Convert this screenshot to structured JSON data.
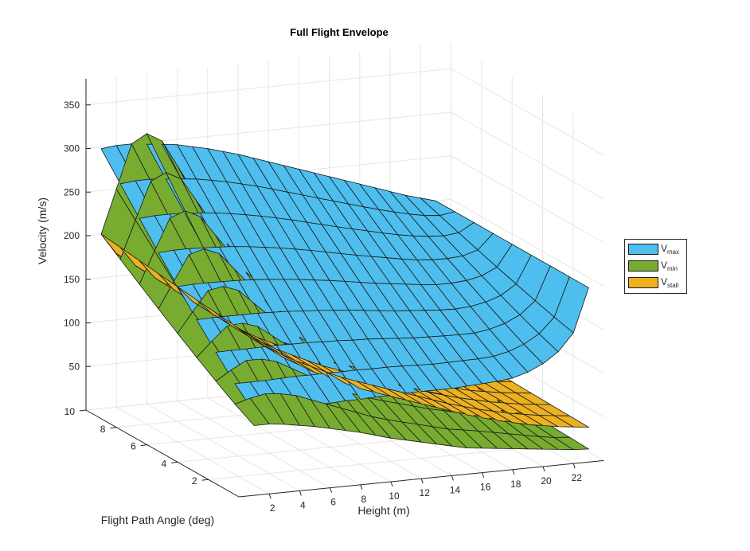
{
  "chart_data": {
    "type": "surface3d",
    "title": "Full Flight Envelope",
    "xlabel": "Height (m)",
    "ylabel": "Flight Path Angle (deg)",
    "zlabel": "Velocity (m/s)",
    "x_ticks": [
      2,
      4,
      6,
      8,
      10,
      12,
      14,
      16,
      18,
      20,
      22
    ],
    "y_ticks": [
      2,
      4,
      6,
      8,
      10
    ],
    "z_ticks": [
      50,
      100,
      150,
      200,
      250,
      300,
      350
    ],
    "xlim": [
      0,
      24
    ],
    "ylim": [
      0,
      10
    ],
    "zlim": [
      0,
      380
    ],
    "grid": true,
    "legend_position": "right",
    "series": [
      {
        "name": "max",
        "color": "#4dbeee",
        "description_height_x": [
          1,
          2,
          3,
          4,
          5,
          6,
          7,
          8,
          9,
          10,
          11,
          12,
          13,
          14,
          15,
          16,
          17,
          18,
          19,
          20,
          21,
          22,
          23
        ],
        "angle_y_at_low": 0,
        "angle_y_at_high": 10,
        "z_at_angle_0": [
          200,
          150,
          130,
          118,
          110,
          105,
          103,
          102,
          101,
          100,
          100,
          100,
          100,
          99,
          99,
          98,
          98,
          97,
          97,
          96,
          95,
          95,
          95
        ],
        "z_at_angle_10": [
          200,
          205,
          210,
          216,
          222,
          228,
          234,
          240,
          246,
          252,
          258,
          264,
          270,
          276,
          281,
          286,
          290,
          294,
          296,
          298,
          300,
          300,
          298
        ]
      },
      {
        "name": "min",
        "color": "#77ac30",
        "z_at_angle_0": [
          15,
          16,
          18,
          20,
          22,
          24,
          26,
          28,
          30,
          34,
          38,
          42,
          46,
          50,
          55,
          60,
          64,
          68,
          72,
          75,
          78,
          80,
          80
        ],
        "z_at_angle_10": [
          24,
          30,
          40,
          55,
          70,
          85,
          100,
          112,
          122,
          130,
          138,
          145,
          155,
          170,
          190,
          210,
          240,
          270,
          300,
          310,
          300,
          250,
          200
        ]
      },
      {
        "name": "stall",
        "color": "#edb120",
        "z_at_angle_0": [
          40,
          42,
          44,
          47,
          50,
          54,
          58,
          63,
          68,
          74,
          80,
          86,
          92,
          98,
          104,
          110,
          118,
          126,
          134,
          144,
          154,
          166,
          180
        ],
        "z_at_angle_10": [
          45,
          47,
          49,
          52,
          55,
          59,
          63,
          68,
          73,
          79,
          85,
          91,
          97,
          103,
          110,
          117,
          125,
          133,
          142,
          152,
          163,
          176,
          200
        ]
      }
    ]
  },
  "legend": {
    "items": [
      {
        "main": "V",
        "sub": "max",
        "color": "#4dbeee"
      },
      {
        "main": "V",
        "sub": "min",
        "color": "#77ac30"
      },
      {
        "main": "V",
        "sub": "stall",
        "color": "#edb120"
      }
    ]
  },
  "labels": {
    "title": "Full Flight Envelope",
    "x": "Height (m)",
    "y": "Flight Path Angle (deg)",
    "z": "Velocity (m/s)"
  }
}
